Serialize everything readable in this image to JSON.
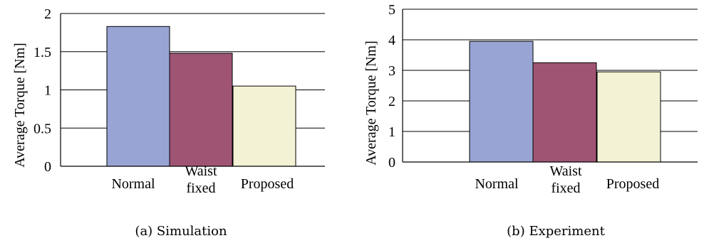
{
  "colors": {
    "normal": "#98a4d4",
    "waist_fixed": "#a05474",
    "proposed": "#f4f2d4"
  },
  "chart_data": [
    {
      "type": "bar",
      "title": "",
      "caption": "(a) Simulation",
      "ylabel": "Average Torque [Nm]",
      "xlabel": "",
      "categories": [
        [
          "Normal"
        ],
        [
          "Waist",
          "fixed"
        ],
        [
          "Proposed"
        ]
      ],
      "values": [
        1.83,
        1.48,
        1.05
      ],
      "ylim": [
        0,
        2
      ],
      "yticks": [
        0,
        0.5,
        1,
        1.5,
        2
      ],
      "ytick_labels": [
        "0",
        "0.5",
        "1",
        "1.5",
        "2"
      ],
      "grid": "horizontal"
    },
    {
      "type": "bar",
      "title": "",
      "caption": "(b) Experiment",
      "ylabel": "Average Torque [Nm]",
      "xlabel": "",
      "categories": [
        [
          "Normal"
        ],
        [
          "Waist",
          "fixed"
        ],
        [
          "Proposed"
        ]
      ],
      "values": [
        3.95,
        3.25,
        2.95
      ],
      "ylim": [
        0,
        5
      ],
      "yticks": [
        0,
        1,
        2,
        3,
        4,
        5
      ],
      "ytick_labels": [
        "0",
        "1",
        "2",
        "3",
        "4",
        "5"
      ],
      "grid": "horizontal"
    }
  ]
}
